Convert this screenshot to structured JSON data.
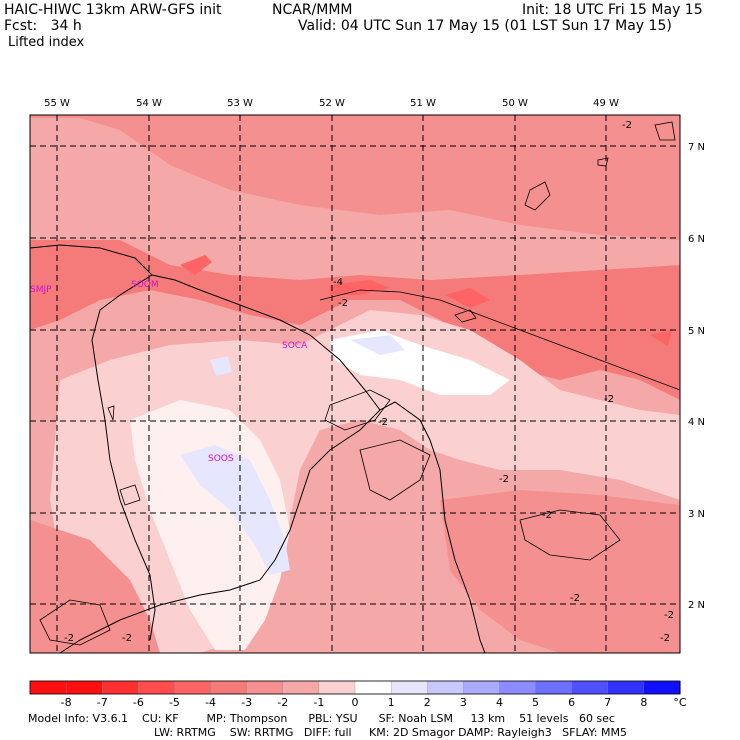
{
  "header": {
    "model": "HAIC-HIWC 13km ARW-GFS init",
    "org": "NCAR/MMM",
    "init": "Init: 18 UTC Fri 15 May 15",
    "fcst": "Fcst:   34 h",
    "valid": "Valid: 04 UTC Sun 17 May 15 (01 LST Sun 17 May 15)",
    "field": "Lifted index"
  },
  "map": {
    "lon_labels": [
      "55 W",
      "54 W",
      "53 W",
      "52 W",
      "51 W",
      "50 W",
      "49 W"
    ],
    "lat_labels": [
      "7 N",
      "6 N",
      "5 N",
      "4 N",
      "3 N",
      "2 N"
    ],
    "stations": [
      "SMJP",
      "SOOM",
      "SOCA",
      "SOOS"
    ],
    "contour_labels": [
      "-2",
      "-4",
      "-2",
      "-2",
      "-2",
      "-2",
      "-2",
      "-2",
      "-2",
      "-2",
      "-2",
      "-2"
    ]
  },
  "colorbar": {
    "ticks": [
      "-8",
      "-7",
      "-6",
      "-5",
      "-4",
      "-3",
      "-2",
      "-1",
      "0",
      "1",
      "2",
      "3",
      "4",
      "5",
      "6",
      "7",
      "8"
    ],
    "unit": "°C",
    "colors": [
      "#ff1010",
      "#ff3030",
      "#ff4c4c",
      "#ff6464",
      "#f57a7a",
      "#f59090",
      "#f5a8a8",
      "#fbd0d0",
      "#ffffff",
      "#e6e6ff",
      "#c8c8ff",
      "#aaaaff",
      "#8c8cff",
      "#6e6eff",
      "#5050ff",
      "#3232ff",
      "#1010ff"
    ]
  },
  "footer": {
    "line1": "Model Info: V3.6.1    CU: KF        MP: Thompson      PBL: YSU      SF: Noah LSM     13 km    51 levels   60 sec",
    "line2": "LW: RRTMG    SW: RRTMG   DIFF: full     KM: 2D Smagor DAMP: Rayleigh3   SFLAY: MM5"
  }
}
